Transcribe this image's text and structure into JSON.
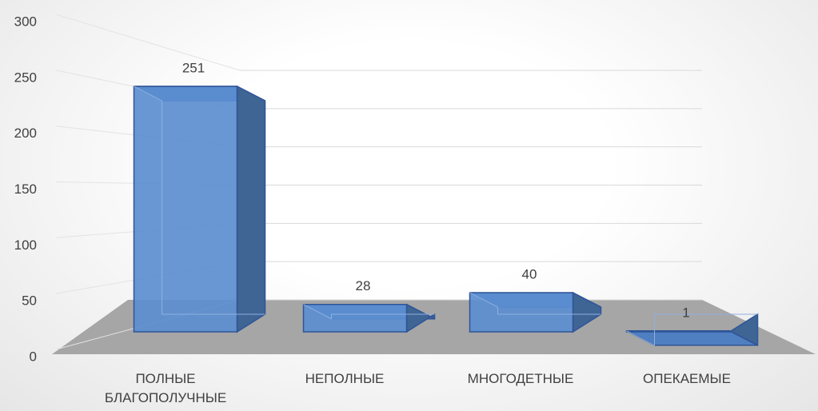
{
  "chart_data": {
    "type": "bar3d",
    "categories": [
      "ПОЛНЫЕ БЛАГОПОЛУЧНЫЕ",
      "НЕПОЛНЫЕ",
      "МНОГОДЕТНЫЕ",
      "ОПЕКАЕМЫЕ"
    ],
    "values": [
      251,
      28,
      40,
      1
    ],
    "color": "#5b8ed0",
    "ylim": [
      0,
      300
    ],
    "yticks": [
      0,
      50,
      100,
      150,
      200,
      250,
      300
    ],
    "grid": true
  }
}
